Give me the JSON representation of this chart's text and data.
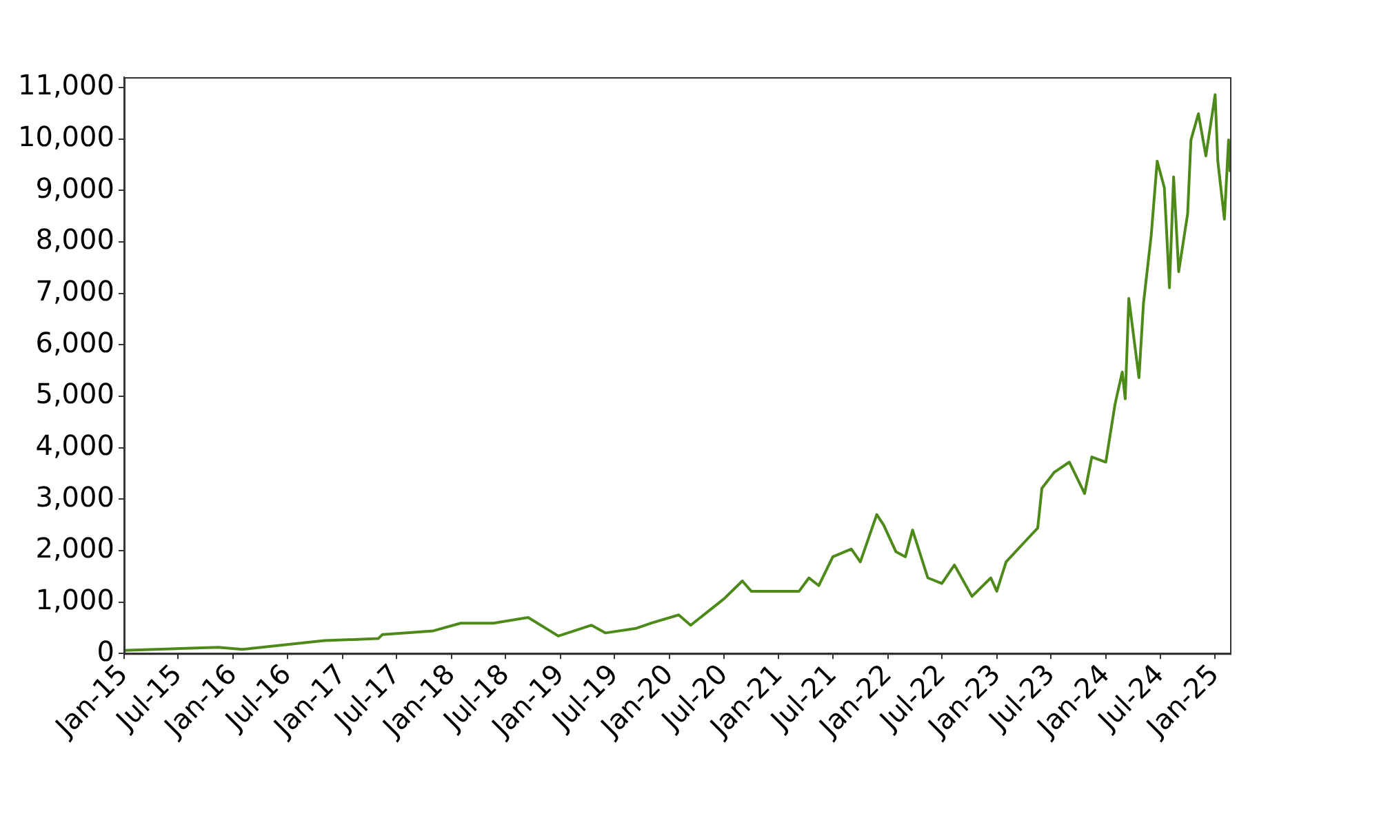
{
  "chart_data": {
    "type": "line",
    "x": [
      "2015-01-01",
      "2015-11-12",
      "2016-02-01",
      "2016-11-01",
      "2017-05-01",
      "2017-05-15",
      "2017-11-01",
      "2018-02-01",
      "2018-05-22",
      "2018-09-15",
      "2018-12-25",
      "2019-04-15",
      "2019-06-01",
      "2019-09-12",
      "2019-11-01",
      "2020-02-01",
      "2020-03-12",
      "2020-07-01",
      "2020-09-01",
      "2020-10-01",
      "2021-03-10",
      "2021-04-12",
      "2021-05-15",
      "2021-07-01",
      "2021-09-01",
      "2021-10-01",
      "2021-11-25",
      "2021-12-18",
      "2022-01-28",
      "2022-03-01",
      "2022-03-25",
      "2022-05-15",
      "2022-07-01",
      "2022-08-12",
      "2022-10-10",
      "2022-12-12",
      "2023-01-01",
      "2023-02-01",
      "2023-04-06",
      "2023-05-18",
      "2023-06-01",
      "2023-07-12",
      "2023-09-01",
      "2023-10-22",
      "2023-11-15",
      "2024-01-01",
      "2024-02-01",
      "2024-02-25",
      "2024-03-06",
      "2024-03-18",
      "2024-04-21",
      "2024-05-06",
      "2024-06-01",
      "2024-06-21",
      "2024-07-15",
      "2024-08-01",
      "2024-08-15",
      "2024-09-01",
      "2024-10-01",
      "2024-10-12",
      "2024-11-06",
      "2024-12-01",
      "2025-01-01",
      "2025-01-10",
      "2025-02-01",
      "2025-02-15",
      "2025-02-20"
    ],
    "series": [
      {
        "color": "#4e8a1a",
        "values": [
          60,
          120,
          80,
          250,
          290,
          370,
          440,
          590,
          590,
          700,
          340,
          550,
          400,
          490,
          590,
          750,
          550,
          1060,
          1410,
          1210,
          1210,
          1470,
          1320,
          1880,
          2030,
          1780,
          2700,
          2500,
          1980,
          1880,
          2400,
          1470,
          1360,
          1720,
          1110,
          1470,
          1210,
          1780,
          2180,
          2440,
          3210,
          3520,
          3720,
          3110,
          3820,
          3720,
          4850,
          5470,
          4950,
          6900,
          5360,
          6800,
          8130,
          9570,
          9050,
          7110,
          9260,
          7420,
          8550,
          9980,
          10490,
          9670,
          10860,
          9570,
          8440,
          9980,
          9360
        ]
      }
    ],
    "xlim": [
      "2015-01-01",
      "2025-02-20"
    ],
    "xticks": [
      {
        "value": "2015-01-01",
        "label": "Jan-15"
      },
      {
        "value": "2015-07-01",
        "label": "Jul-15"
      },
      {
        "value": "2016-01-01",
        "label": "Jan-16"
      },
      {
        "value": "2016-07-01",
        "label": "Jul-16"
      },
      {
        "value": "2017-01-01",
        "label": "Jan-17"
      },
      {
        "value": "2017-07-01",
        "label": "Jul-17"
      },
      {
        "value": "2018-01-01",
        "label": "Jan-18"
      },
      {
        "value": "2018-07-01",
        "label": "Jul-18"
      },
      {
        "value": "2019-01-01",
        "label": "Jan-19"
      },
      {
        "value": "2019-07-01",
        "label": "Jul-19"
      },
      {
        "value": "2020-01-01",
        "label": "Jan-20"
      },
      {
        "value": "2020-07-01",
        "label": "Jul-20"
      },
      {
        "value": "2021-01-01",
        "label": "Jan-21"
      },
      {
        "value": "2021-07-01",
        "label": "Jul-21"
      },
      {
        "value": "2022-01-01",
        "label": "Jan-22"
      },
      {
        "value": "2022-07-01",
        "label": "Jul-22"
      },
      {
        "value": "2023-01-01",
        "label": "Jan-23"
      },
      {
        "value": "2023-07-01",
        "label": "Jul-23"
      },
      {
        "value": "2024-01-01",
        "label": "Jan-24"
      },
      {
        "value": "2024-07-01",
        "label": "Jul-24"
      },
      {
        "value": "2025-01-01",
        "label": "Jan-25"
      }
    ],
    "ylim": [
      0,
      11200
    ],
    "yticks": [
      {
        "value": 0,
        "label": "0"
      },
      {
        "value": 1000,
        "label": "1,000"
      },
      {
        "value": 2000,
        "label": "2,000"
      },
      {
        "value": 3000,
        "label": "3,000"
      },
      {
        "value": 4000,
        "label": "4,000"
      },
      {
        "value": 5000,
        "label": "5,000"
      },
      {
        "value": 6000,
        "label": "6,000"
      },
      {
        "value": 7000,
        "label": "7,000"
      },
      {
        "value": 8000,
        "label": "8,000"
      },
      {
        "value": 9000,
        "label": "9,000"
      },
      {
        "value": 10000,
        "label": "10,000"
      },
      {
        "value": 11000,
        "label": "11,000"
      }
    ],
    "grid": false,
    "legend": false,
    "marker": "none",
    "line_style": "solid"
  }
}
